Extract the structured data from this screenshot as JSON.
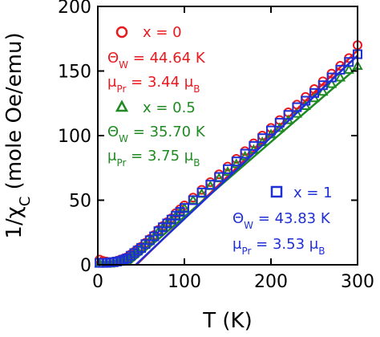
{
  "chart_data": {
    "type": "scatter",
    "xlabel": "T (K)",
    "ylabel": "1/χ",
    "ylabel_sub": "C",
    "ylabel_tail": " (mole Oe/emu)",
    "xlim": [
      0,
      300
    ],
    "ylim": [
      0,
      200
    ],
    "xticks": [
      0,
      100,
      200,
      300
    ],
    "yticks": [
      0,
      50,
      100,
      150,
      200
    ],
    "xtick_labels": [
      "0",
      "100",
      "200",
      "300"
    ],
    "ytick_labels": [
      "0",
      "50",
      "100",
      "150",
      "200"
    ],
    "grid": false,
    "series": [
      {
        "name": "x = 0",
        "marker": "circle",
        "color": "#e8191e",
        "x": [
          2,
          6,
          10,
          14,
          18,
          22,
          26,
          30,
          34,
          38,
          42,
          46,
          50,
          55,
          60,
          65,
          70,
          75,
          80,
          85,
          90,
          95,
          100,
          110,
          120,
          130,
          140,
          150,
          160,
          170,
          180,
          190,
          200,
          210,
          220,
          230,
          240,
          250,
          260,
          270,
          280,
          290,
          300
        ],
        "y": [
          4,
          3,
          2.5,
          2,
          2.5,
          3,
          4,
          5,
          6,
          8,
          10,
          12,
          14,
          17,
          20,
          23,
          27,
          30,
          33,
          36,
          40,
          43,
          46,
          52,
          58,
          64,
          70,
          76,
          82,
          88,
          94,
          100,
          106,
          112,
          118,
          124,
          130,
          136,
          142,
          148,
          154,
          160,
          170
        ],
        "fit": {
          "theta_w": 44.64,
          "x_range": [
            44.64,
            300
          ],
          "y_end": 166
        }
      },
      {
        "name": "x = 0.5",
        "marker": "triangle",
        "color": "#1f8a22",
        "x": [
          2,
          6,
          10,
          14,
          18,
          22,
          26,
          30,
          34,
          38,
          42,
          46,
          50,
          55,
          60,
          65,
          70,
          75,
          80,
          85,
          90,
          95,
          100,
          110,
          120,
          130,
          140,
          150,
          160,
          170,
          180,
          190,
          200,
          210,
          220,
          230,
          240,
          250,
          260,
          270,
          280,
          290,
          300
        ],
        "y": [
          1,
          1,
          1,
          1,
          1.5,
          2,
          3,
          4,
          5,
          7,
          9,
          11,
          13,
          16,
          19,
          22,
          26,
          29,
          32,
          35,
          38,
          41,
          44,
          50,
          55,
          61,
          67,
          72,
          78,
          84,
          89,
          95,
          101,
          106,
          112,
          117,
          123,
          129,
          134,
          140,
          145,
          151,
          154
        ],
        "fit": {
          "theta_w": 35.7,
          "x_range": [
            35.7,
            300
          ],
          "y_end": 153
        }
      },
      {
        "name": "x = 1",
        "marker": "square",
        "color": "#1f2fd6",
        "x": [
          2,
          6,
          10,
          14,
          18,
          22,
          26,
          30,
          34,
          38,
          42,
          46,
          50,
          55,
          60,
          65,
          70,
          75,
          80,
          85,
          90,
          95,
          100,
          110,
          120,
          130,
          140,
          150,
          160,
          170,
          180,
          190,
          200,
          210,
          220,
          230,
          240,
          250,
          260,
          270,
          280,
          290,
          300
        ],
        "y": [
          1.5,
          1.5,
          1.5,
          2,
          2,
          2.5,
          3,
          4,
          5,
          7,
          9,
          11,
          13,
          16,
          19,
          22,
          26,
          29,
          32,
          35,
          38,
          41,
          44,
          50,
          56,
          62,
          68,
          74,
          80,
          86,
          92,
          98,
          104,
          110,
          116,
          122,
          127,
          133,
          139,
          145,
          151,
          157,
          163
        ],
        "fit": {
          "theta_w": 43.83,
          "x_range": [
            43.83,
            300
          ],
          "y_end": 162
        }
      }
    ],
    "annotations": {
      "red": {
        "label": "x = 0",
        "theta_sym": "Θ",
        "theta_sub": "W",
        "theta_val": " = 44.64 K",
        "mu_sym": "μ",
        "mu_sub": "Pr",
        "mu_val": " = 3.44 μ",
        "mu_unit_sub": "B"
      },
      "green": {
        "label": "x = 0.5",
        "theta_sym": "Θ",
        "theta_sub": "W",
        "theta_val": " = 35.70 K",
        "mu_sym": "μ",
        "mu_sub": "Pr",
        "mu_val": " = 3.75 μ",
        "mu_unit_sub": "B"
      },
      "blue": {
        "label": "x = 1",
        "theta_sym": "Θ",
        "theta_sub": "W",
        "theta_val": " = 43.83 K",
        "mu_sym": "μ",
        "mu_sub": "Pr",
        "mu_val": " = 3.53 μ",
        "mu_unit_sub": "B"
      }
    }
  }
}
